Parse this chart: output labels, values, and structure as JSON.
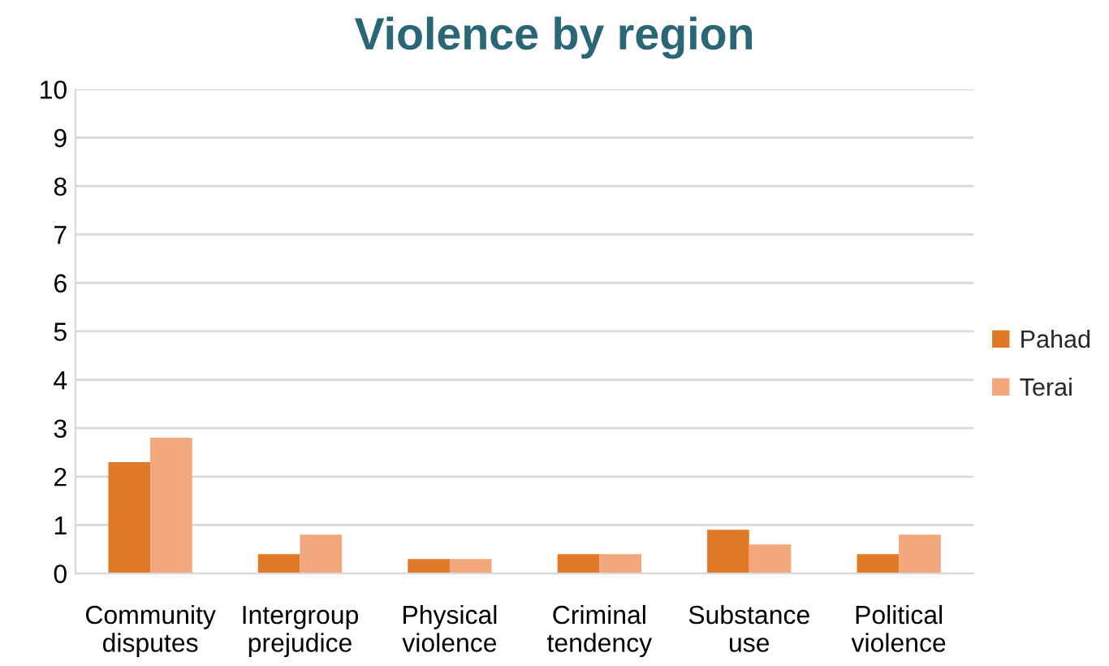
{
  "chart_data": {
    "type": "bar",
    "title": "Violence by region",
    "categories": [
      "Community disputes",
      "Intergroup prejudice",
      "Physical violence",
      "Criminal tendency",
      "Substance use",
      "Political violence"
    ],
    "series": [
      {
        "name": "Pahad",
        "color": "#e07a28",
        "values": [
          2.3,
          0.4,
          0.3,
          0.4,
          0.9,
          0.4
        ]
      },
      {
        "name": "Terai",
        "color": "#f2a77c",
        "values": [
          2.8,
          0.8,
          0.3,
          0.4,
          0.6,
          0.8
        ]
      }
    ],
    "ylim": [
      0,
      10
    ],
    "yticks": [
      0,
      1,
      2,
      3,
      4,
      5,
      6,
      7,
      8,
      9,
      10
    ],
    "grid": "y",
    "legend": "right"
  }
}
